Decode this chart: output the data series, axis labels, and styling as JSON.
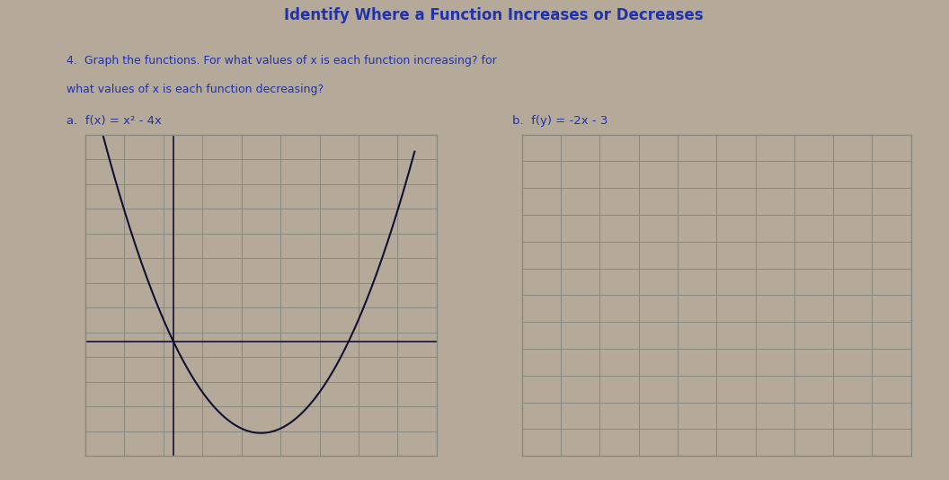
{
  "title": "Identify Where a Function Increases or Decreases",
  "instruction_line1": "4.  Graph the functions. For what values of x is each function increasing? for",
  "instruction_line2": "what values of x is each function decreasing?",
  "func_a_label": "a.  f(x) = x² - 4x",
  "func_b_label": "b.  f(y) = -2x - 3",
  "background_color": "#b5aa9a",
  "grid_line_color": "#888880",
  "grid_bg": "#b5aa9a",
  "text_color": "#2233aa",
  "curve_color": "#111133",
  "title_fontsize": 12,
  "label_fontsize": 9.5,
  "instr_fontsize": 9,
  "grid_cols_a": 9,
  "grid_rows_a": 13,
  "grid_cols_b": 10,
  "grid_rows_b": 12,
  "xlim_a": [
    0,
    9
  ],
  "ylim_a": [
    0,
    13
  ],
  "xlim_b": [
    0,
    10
  ],
  "ylim_b": [
    0,
    12
  ]
}
